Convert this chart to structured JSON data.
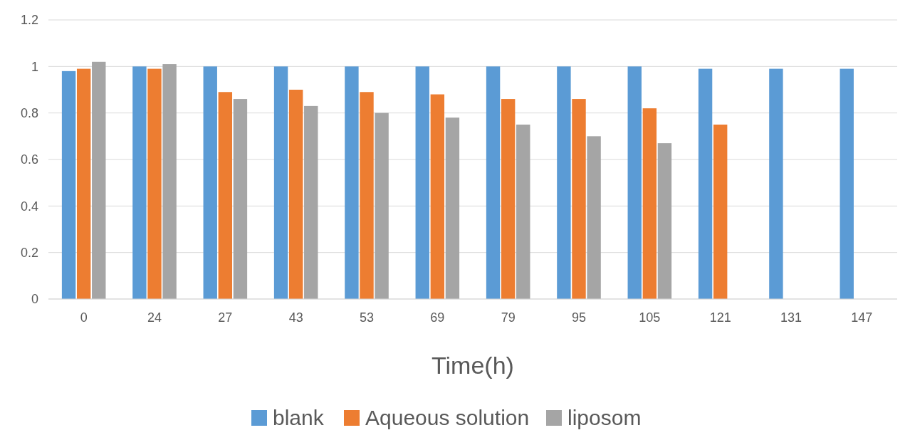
{
  "chart_data": {
    "type": "bar",
    "xlabel": "Time(h)",
    "categories": [
      "0",
      "24",
      "27",
      "43",
      "53",
      "69",
      "79",
      "95",
      "105",
      "121",
      "131",
      "147"
    ],
    "series": [
      {
        "name": "blank",
        "color": "#5b9bd5",
        "values": [
          0.98,
          1.0,
          1.0,
          1.0,
          1.0,
          1.0,
          1.0,
          1.0,
          1.0,
          0.99,
          0.99,
          0.99
        ]
      },
      {
        "name": "Aqueous solution",
        "color": "#ed7d31",
        "values": [
          0.99,
          0.99,
          0.89,
          0.9,
          0.89,
          0.88,
          0.86,
          0.86,
          0.82,
          0.75,
          null,
          null
        ]
      },
      {
        "name": "liposom",
        "color": "#a5a5a5",
        "values": [
          1.02,
          1.01,
          0.86,
          0.83,
          0.8,
          0.78,
          0.75,
          0.7,
          0.67,
          null,
          null,
          null
        ]
      }
    ],
    "ylim": [
      0,
      1.2
    ],
    "yticks": [
      0,
      0.2,
      0.4,
      0.6,
      0.8,
      1,
      1.2
    ],
    "grid": "y",
    "legend": "bottom"
  }
}
